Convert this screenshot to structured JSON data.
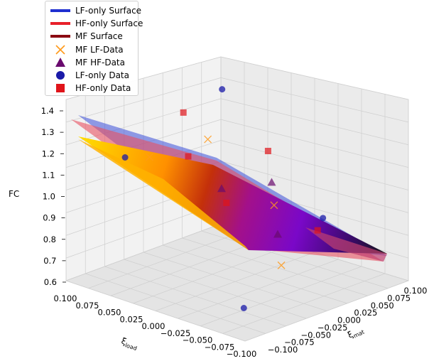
{
  "chart_data": {
    "type": "surface3d",
    "zlabel": "FC",
    "xlabel": "ξ_load",
    "xlabel_main": "ξ",
    "xlabel_sub": "load",
    "ylabel": "ξ_mat",
    "ylabel_main": "ξ",
    "ylabel_sub": "mat",
    "x_ticks": [
      "0.100",
      "0.075",
      "0.050",
      "0.025",
      "0.000",
      "−0.025",
      "−0.050",
      "−0.075",
      "−0.100"
    ],
    "y_ticks": [
      "−0.100",
      "−0.075",
      "−0.050",
      "−0.025",
      "0.000",
      "0.025",
      "0.050",
      "0.075",
      "0.100"
    ],
    "z_ticks": [
      "0.6",
      "0.7",
      "0.8",
      "0.9",
      "1.0",
      "1.1",
      "1.2",
      "1.3",
      "1.4"
    ],
    "x_range": [
      -0.1,
      0.1
    ],
    "y_range": [
      -0.1,
      0.1
    ],
    "z_range": [
      0.6,
      1.4
    ],
    "grid": true,
    "legend_position": "top-left",
    "colors": {
      "lf_surface": "#1f2fd0",
      "hf_surface": "#e8202a",
      "mf_surface": "#8b0a12",
      "mf_lf_data": "#ff9a1a",
      "mf_hf_data": "#6a0a6e",
      "lf_data": "#1a1aa8",
      "hf_data": "#e0141a"
    },
    "series": [
      {
        "name": "LF-only Surface",
        "kind": "surface"
      },
      {
        "name": "HF-only Surface",
        "kind": "surface"
      },
      {
        "name": "MF Surface",
        "kind": "surface"
      },
      {
        "name": "MF LF-Data",
        "kind": "points",
        "marker": "x",
        "points": [
          [
            0.08,
            0.06,
            1.05
          ],
          [
            -0.02,
            0.03,
            0.93
          ],
          [
            0.05,
            -0.05,
            1.15
          ],
          [
            -0.08,
            -0.03,
            0.82
          ]
        ]
      },
      {
        "name": "MF HF-Data",
        "kind": "points",
        "marker": "triangle",
        "points": [
          [
            0.03,
            0.02,
            0.95
          ],
          [
            0.0,
            0.05,
            0.98
          ],
          [
            -0.05,
            0.0,
            0.88
          ]
        ]
      },
      {
        "name": "LF-only Data",
        "kind": "points",
        "marker": "circle",
        "points": [
          [
            0.09,
            0.09,
            1.22
          ],
          [
            -0.09,
            -0.09,
            0.72
          ],
          [
            0.06,
            -0.07,
            1.16
          ],
          [
            -0.04,
            0.07,
            0.85
          ]
        ]
      },
      {
        "name": "HF-only Data",
        "kind": "points",
        "marker": "square",
        "points": [
          [
            0.09,
            0.04,
            1.18
          ],
          [
            0.03,
            0.08,
            1.04
          ],
          [
            -0.01,
            -0.02,
            0.99
          ],
          [
            -0.06,
            0.04,
            0.86
          ],
          [
            0.05,
            0.0,
            1.09
          ]
        ]
      }
    ]
  }
}
